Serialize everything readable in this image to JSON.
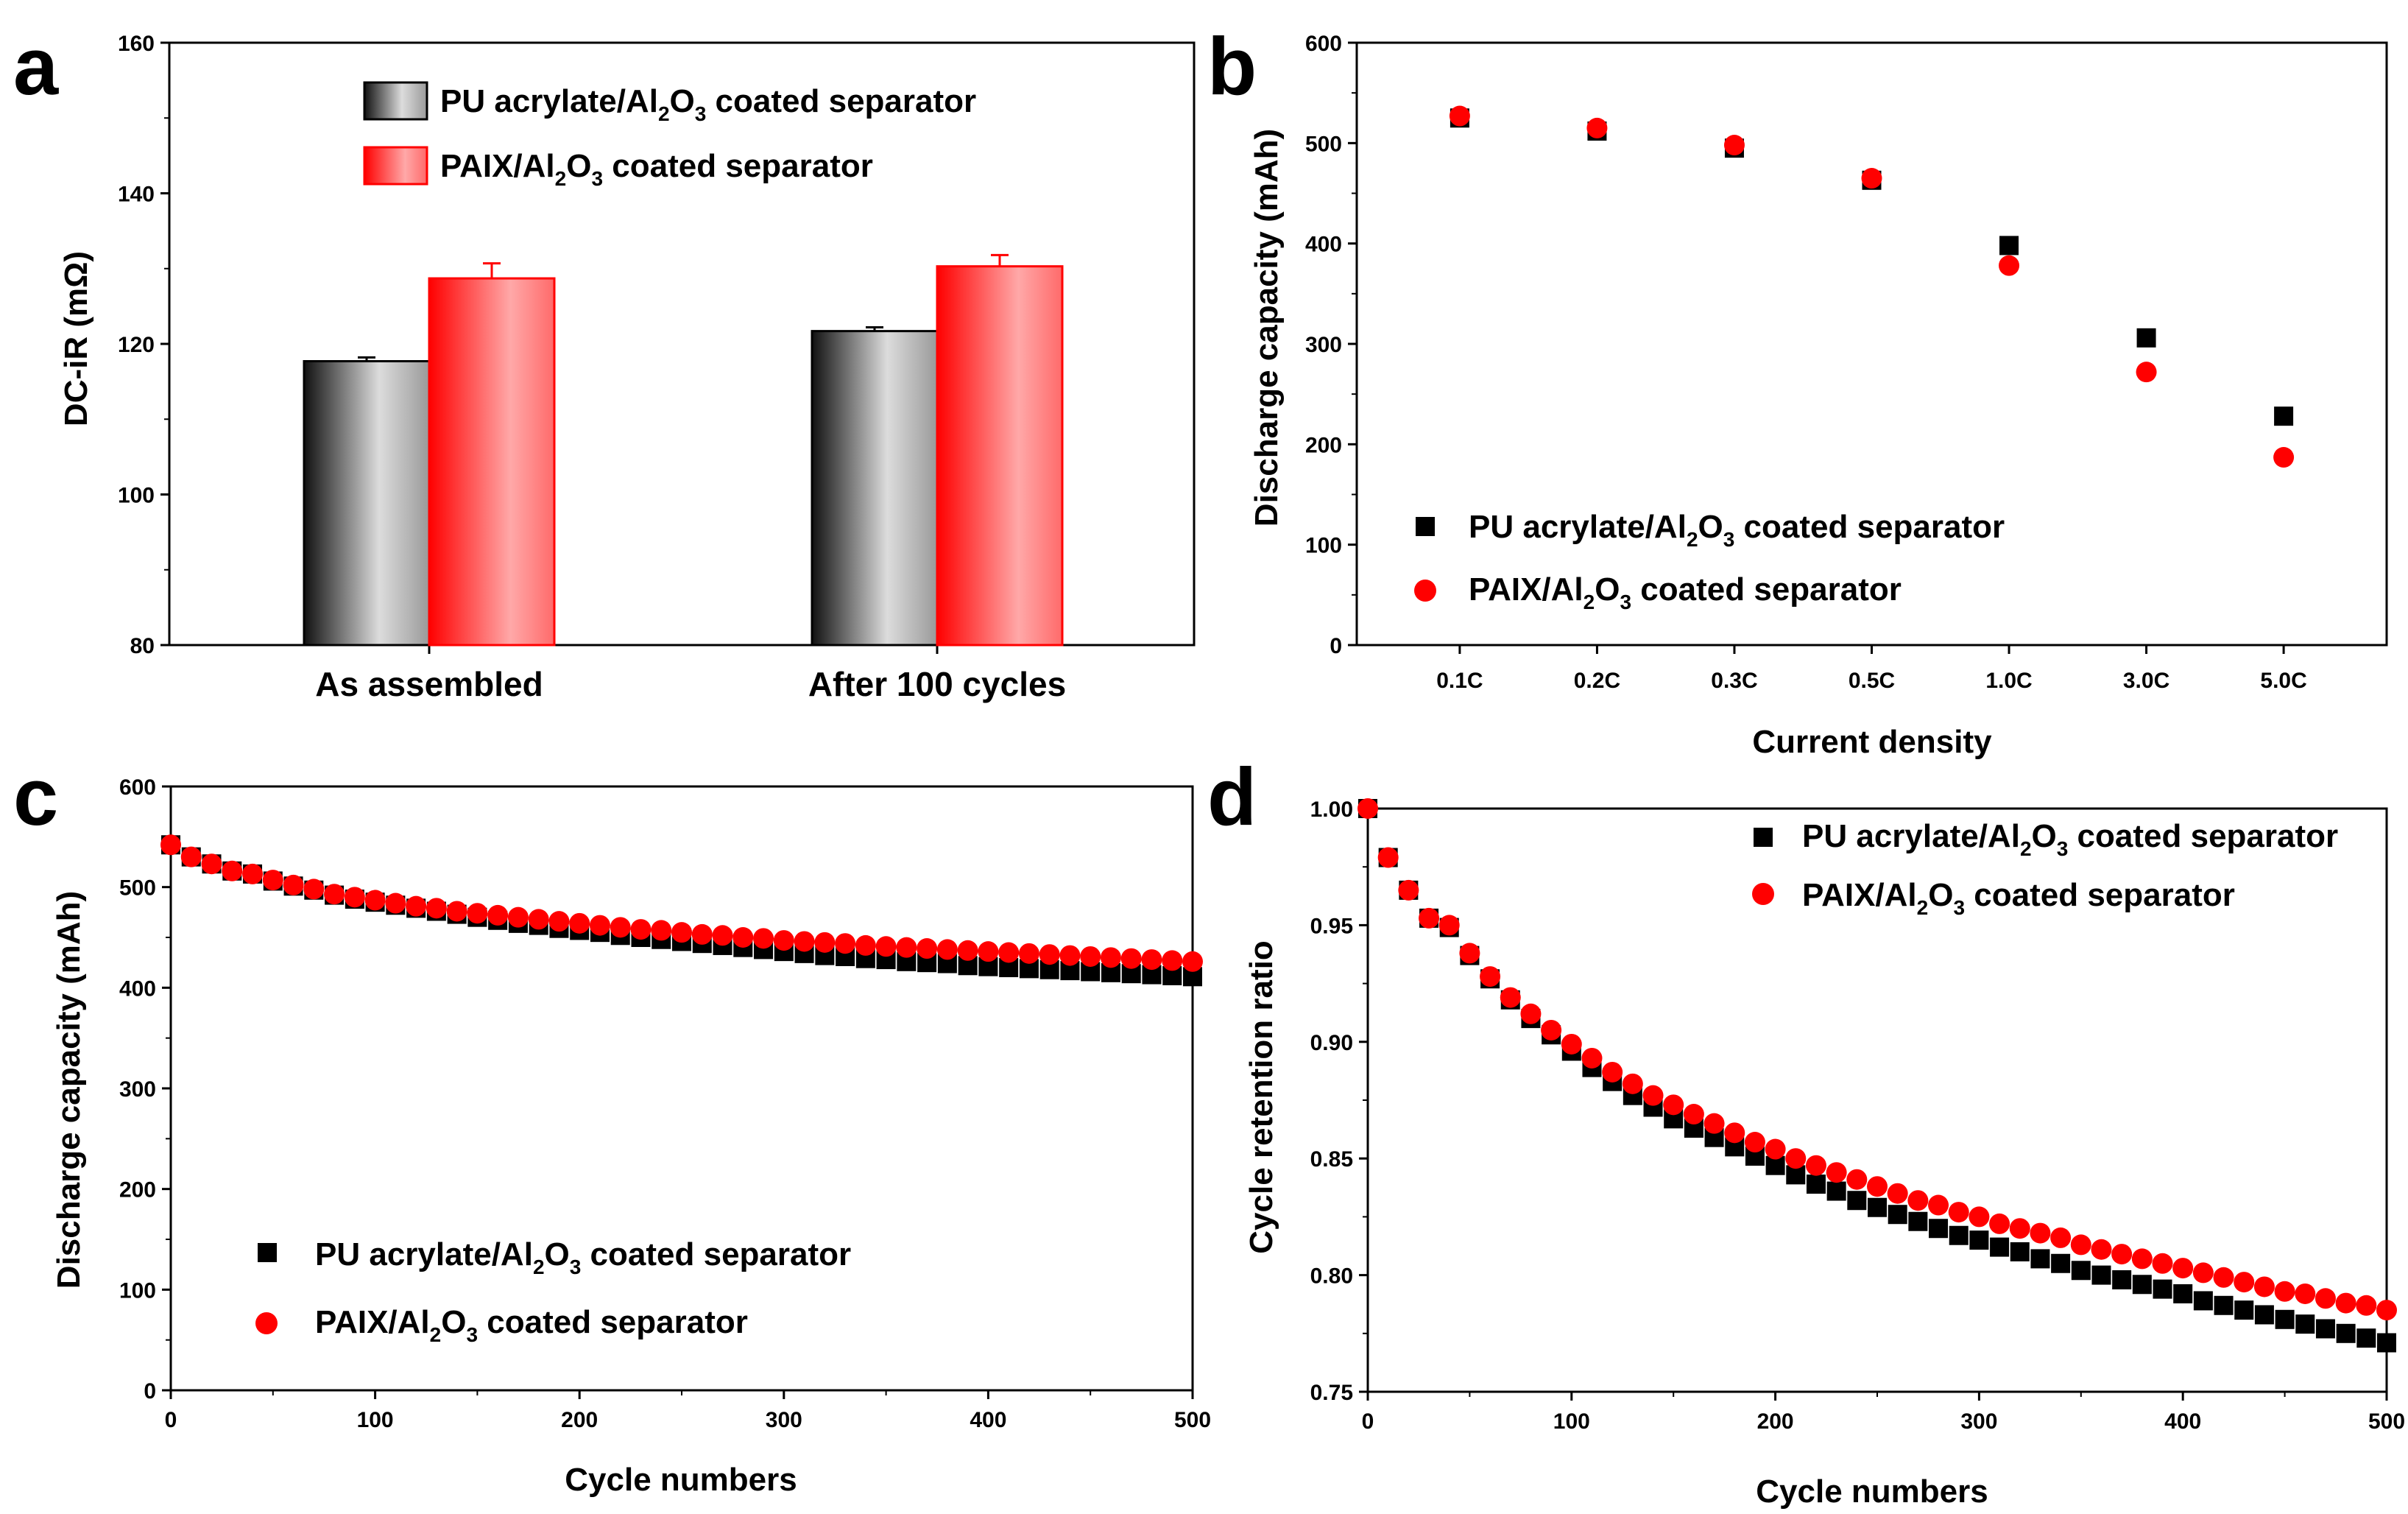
{
  "colors": {
    "pu": "#000000",
    "paix": "#ff0000",
    "paix_light": "#ff9a9a",
    "gray_light": "#dcdcdc",
    "axis": "#000000"
  },
  "legend": {
    "pu": {
      "pre": "PU acrylate/Al",
      "s1": "2",
      "mid": "O",
      "s2": "3",
      "post": " coated separator"
    },
    "paix": {
      "pre": "PAIX/Al",
      "s1": "2",
      "mid": "O",
      "s2": "3",
      "post": " coated separator"
    }
  },
  "panels": {
    "a": {
      "letter": "a"
    },
    "b": {
      "letter": "b"
    },
    "c": {
      "letter": "c"
    },
    "d": {
      "letter": "d"
    }
  },
  "chart_data": [
    {
      "id": "a",
      "type": "bar",
      "title": "",
      "ylabel": "DC-iR (mΩ)",
      "xlabel": "",
      "categories": [
        "As assembled",
        "After 100 cycles"
      ],
      "ylim": [
        80,
        160
      ],
      "yticks": [
        "80",
        "100",
        "120",
        "140",
        "160"
      ],
      "series": [
        {
          "name": "PU acrylate/Al2O3 coated separator",
          "values": [
            117.7,
            121.7
          ],
          "errors": [
            0.5,
            0.5
          ]
        },
        {
          "name": "PAIX/Al2O3 coated separator",
          "values": [
            128.7,
            130.3
          ],
          "errors": [
            2.0,
            1.5
          ]
        }
      ]
    },
    {
      "id": "b",
      "type": "scatter",
      "title": "",
      "ylabel": "Discharge capacity (mAh)",
      "xlabel": "Current density",
      "categories": [
        "0.1C",
        "0.2C",
        "0.3C",
        "0.5C",
        "1.0C",
        "3.0C",
        "5.0C"
      ],
      "ylim": [
        0,
        600
      ],
      "yticks": [
        "0",
        "100",
        "200",
        "300",
        "400",
        "500",
        "600"
      ],
      "series": [
        {
          "name": "PU acrylate/Al2O3 coated separator",
          "marker": "square",
          "values": [
            525,
            512,
            495,
            463,
            398,
            306,
            228
          ]
        },
        {
          "name": "PAIX/Al2O3 coated separator",
          "marker": "circle",
          "values": [
            527,
            515,
            498,
            465,
            378,
            272,
            187
          ]
        }
      ]
    },
    {
      "id": "c",
      "type": "scatter",
      "title": "",
      "ylabel": "Discharge capacity (mAh)",
      "xlabel": "Cycle numbers",
      "xlim": [
        0,
        500
      ],
      "xticks": [
        "0",
        "100",
        "200",
        "300",
        "400",
        "500"
      ],
      "ylim": [
        0,
        600
      ],
      "yticks": [
        "0",
        "100",
        "200",
        "300",
        "400",
        "500",
        "600"
      ],
      "x": [
        0,
        10,
        20,
        30,
        40,
        50,
        60,
        70,
        80,
        90,
        100,
        110,
        120,
        130,
        140,
        150,
        160,
        170,
        180,
        190,
        200,
        210,
        220,
        230,
        240,
        250,
        260,
        270,
        280,
        290,
        300,
        310,
        320,
        330,
        340,
        350,
        360,
        370,
        380,
        390,
        400,
        410,
        420,
        430,
        440,
        450,
        460,
        470,
        480,
        490,
        500
      ],
      "series": [
        {
          "name": "PU acrylate/Al2O3 coated separator",
          "marker": "square",
          "values": [
            542,
            530,
            523,
            516,
            513,
            506,
            501,
            497,
            492,
            488,
            485,
            482,
            479,
            476,
            473,
            470,
            467,
            464,
            462,
            459,
            457,
            455,
            452,
            450,
            448,
            446,
            444,
            442,
            440,
            438,
            436,
            434,
            432,
            431,
            429,
            428,
            426,
            425,
            424,
            422,
            421,
            420,
            419,
            418,
            417,
            416,
            415,
            414,
            413,
            412,
            411
          ]
        },
        {
          "name": "PAIX/Al2O3 coated separator",
          "marker": "circle",
          "values": [
            542,
            530,
            523,
            516,
            513,
            507,
            502,
            498,
            493,
            490,
            487,
            484,
            481,
            479,
            476,
            474,
            472,
            470,
            468,
            466,
            464,
            462,
            460,
            458,
            457,
            455,
            453,
            452,
            450,
            449,
            447,
            446,
            445,
            444,
            442,
            441,
            440,
            439,
            438,
            437,
            436,
            435,
            434,
            433,
            432,
            431,
            430,
            429,
            428,
            427,
            426
          ]
        }
      ]
    },
    {
      "id": "d",
      "type": "scatter",
      "title": "",
      "ylabel": "Cycle retention ratio",
      "xlabel": "Cycle numbers",
      "xlim": [
        0,
        500
      ],
      "xticks": [
        "0",
        "100",
        "200",
        "300",
        "400",
        "500"
      ],
      "ylim": [
        0.75,
        1.0
      ],
      "yticks": [
        "0.75",
        "0.80",
        "0.85",
        "0.90",
        "0.95",
        "1.00"
      ],
      "x": [
        0,
        10,
        20,
        30,
        40,
        50,
        60,
        70,
        80,
        90,
        100,
        110,
        120,
        130,
        140,
        150,
        160,
        170,
        180,
        190,
        200,
        210,
        220,
        230,
        240,
        250,
        260,
        270,
        280,
        290,
        300,
        310,
        320,
        330,
        340,
        350,
        360,
        370,
        380,
        390,
        400,
        410,
        420,
        430,
        440,
        450,
        460,
        470,
        480,
        490,
        500
      ],
      "series": [
        {
          "name": "PU acrylate/Al2O3 coated separator",
          "marker": "square",
          "values": [
            1.0,
            0.979,
            0.965,
            0.953,
            0.949,
            0.937,
            0.927,
            0.918,
            0.91,
            0.903,
            0.896,
            0.889,
            0.883,
            0.877,
            0.872,
            0.867,
            0.863,
            0.859,
            0.855,
            0.851,
            0.847,
            0.843,
            0.839,
            0.836,
            0.832,
            0.829,
            0.826,
            0.823,
            0.82,
            0.817,
            0.815,
            0.812,
            0.81,
            0.807,
            0.805,
            0.802,
            0.8,
            0.798,
            0.796,
            0.794,
            0.792,
            0.789,
            0.787,
            0.785,
            0.783,
            0.781,
            0.779,
            0.777,
            0.775,
            0.773,
            0.771
          ]
        },
        {
          "name": "PAIX/Al2O3 coated separator",
          "marker": "circle",
          "values": [
            1.0,
            0.979,
            0.965,
            0.953,
            0.95,
            0.938,
            0.928,
            0.919,
            0.912,
            0.905,
            0.899,
            0.893,
            0.887,
            0.882,
            0.877,
            0.873,
            0.869,
            0.865,
            0.861,
            0.857,
            0.854,
            0.85,
            0.847,
            0.844,
            0.841,
            0.838,
            0.835,
            0.832,
            0.83,
            0.827,
            0.825,
            0.822,
            0.82,
            0.818,
            0.816,
            0.813,
            0.811,
            0.809,
            0.807,
            0.805,
            0.803,
            0.801,
            0.799,
            0.797,
            0.795,
            0.793,
            0.792,
            0.79,
            0.788,
            0.787,
            0.785
          ]
        }
      ]
    }
  ]
}
